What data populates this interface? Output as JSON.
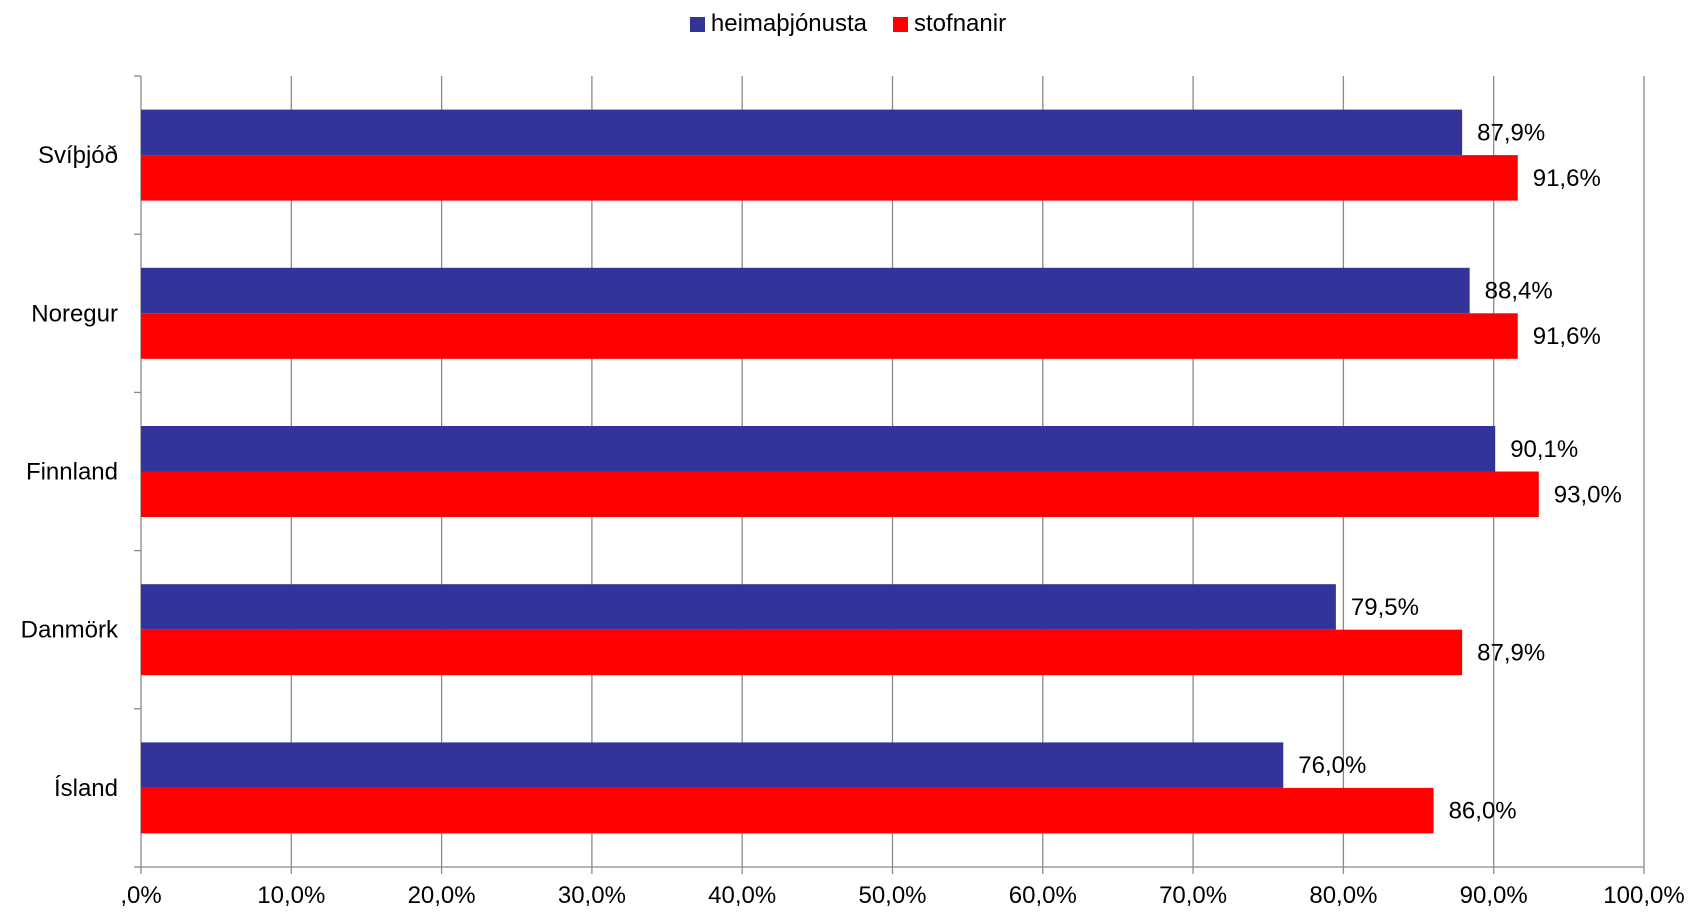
{
  "chart_data": {
    "type": "bar",
    "orientation": "horizontal",
    "categories": [
      "Svíþjóð",
      "Noregur",
      "Finnland",
      "Danmörk",
      "Ísland"
    ],
    "series": [
      {
        "name": "heimaþjónusta",
        "color": "#333399",
        "values": [
          87.9,
          88.4,
          90.1,
          79.5,
          76.0
        ],
        "labels": [
          "87,9%",
          "88,4%",
          "90,1%",
          "79,5%",
          "76,0%"
        ]
      },
      {
        "name": "stofnanir",
        "color": "#ff0000",
        "values": [
          91.6,
          91.6,
          93.0,
          87.9,
          86.0
        ],
        "labels": [
          "91,6%",
          "91,6%",
          "93,0%",
          "87,9%",
          "86,0%"
        ]
      }
    ],
    "xlim": [
      0,
      100
    ],
    "xticks": [
      0,
      10,
      20,
      30,
      40,
      50,
      60,
      70,
      80,
      90,
      100
    ],
    "xtick_labels": [
      ",0%",
      "10,0%",
      "20,0%",
      "30,0%",
      "40,0%",
      "50,0%",
      "60,0%",
      "70,0%",
      "80,0%",
      "90,0%",
      "100,0%"
    ],
    "grid": "vertical",
    "legend_position": "top"
  }
}
